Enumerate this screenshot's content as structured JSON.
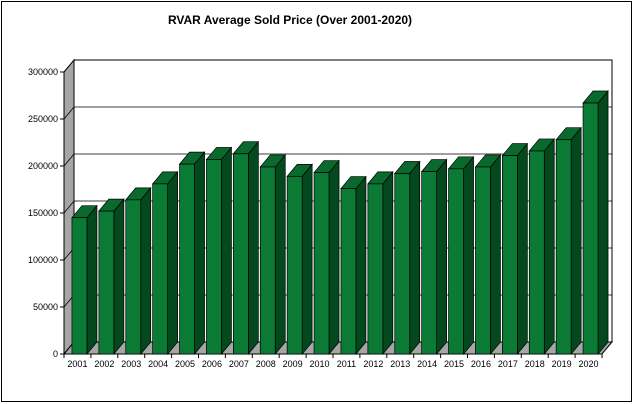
{
  "chart_data": {
    "type": "bar",
    "title": "RVAR Average Sold Price (Over 2001-2020)",
    "xlabel": "",
    "ylabel": "",
    "categories": [
      "2001",
      "2002",
      "2003",
      "2004",
      "2005",
      "2006",
      "2007",
      "2008",
      "2009",
      "2010",
      "2011",
      "2012",
      "2013",
      "2014",
      "2015",
      "2016",
      "2017",
      "2018",
      "2019",
      "2020"
    ],
    "values": [
      145000,
      152000,
      164000,
      181000,
      202000,
      207000,
      213000,
      199000,
      189000,
      193000,
      176000,
      181000,
      192000,
      194000,
      197000,
      199000,
      211000,
      216000,
      228000,
      267000
    ],
    "ylim": [
      0,
      300000
    ],
    "yticks": [
      "0",
      "50000",
      "100000",
      "150000",
      "200000",
      "250000",
      "300000"
    ],
    "grid": true,
    "bar_color": "#0b7a35",
    "bar_side_color": "#04481e",
    "wall_color": "#a6a6a6"
  }
}
